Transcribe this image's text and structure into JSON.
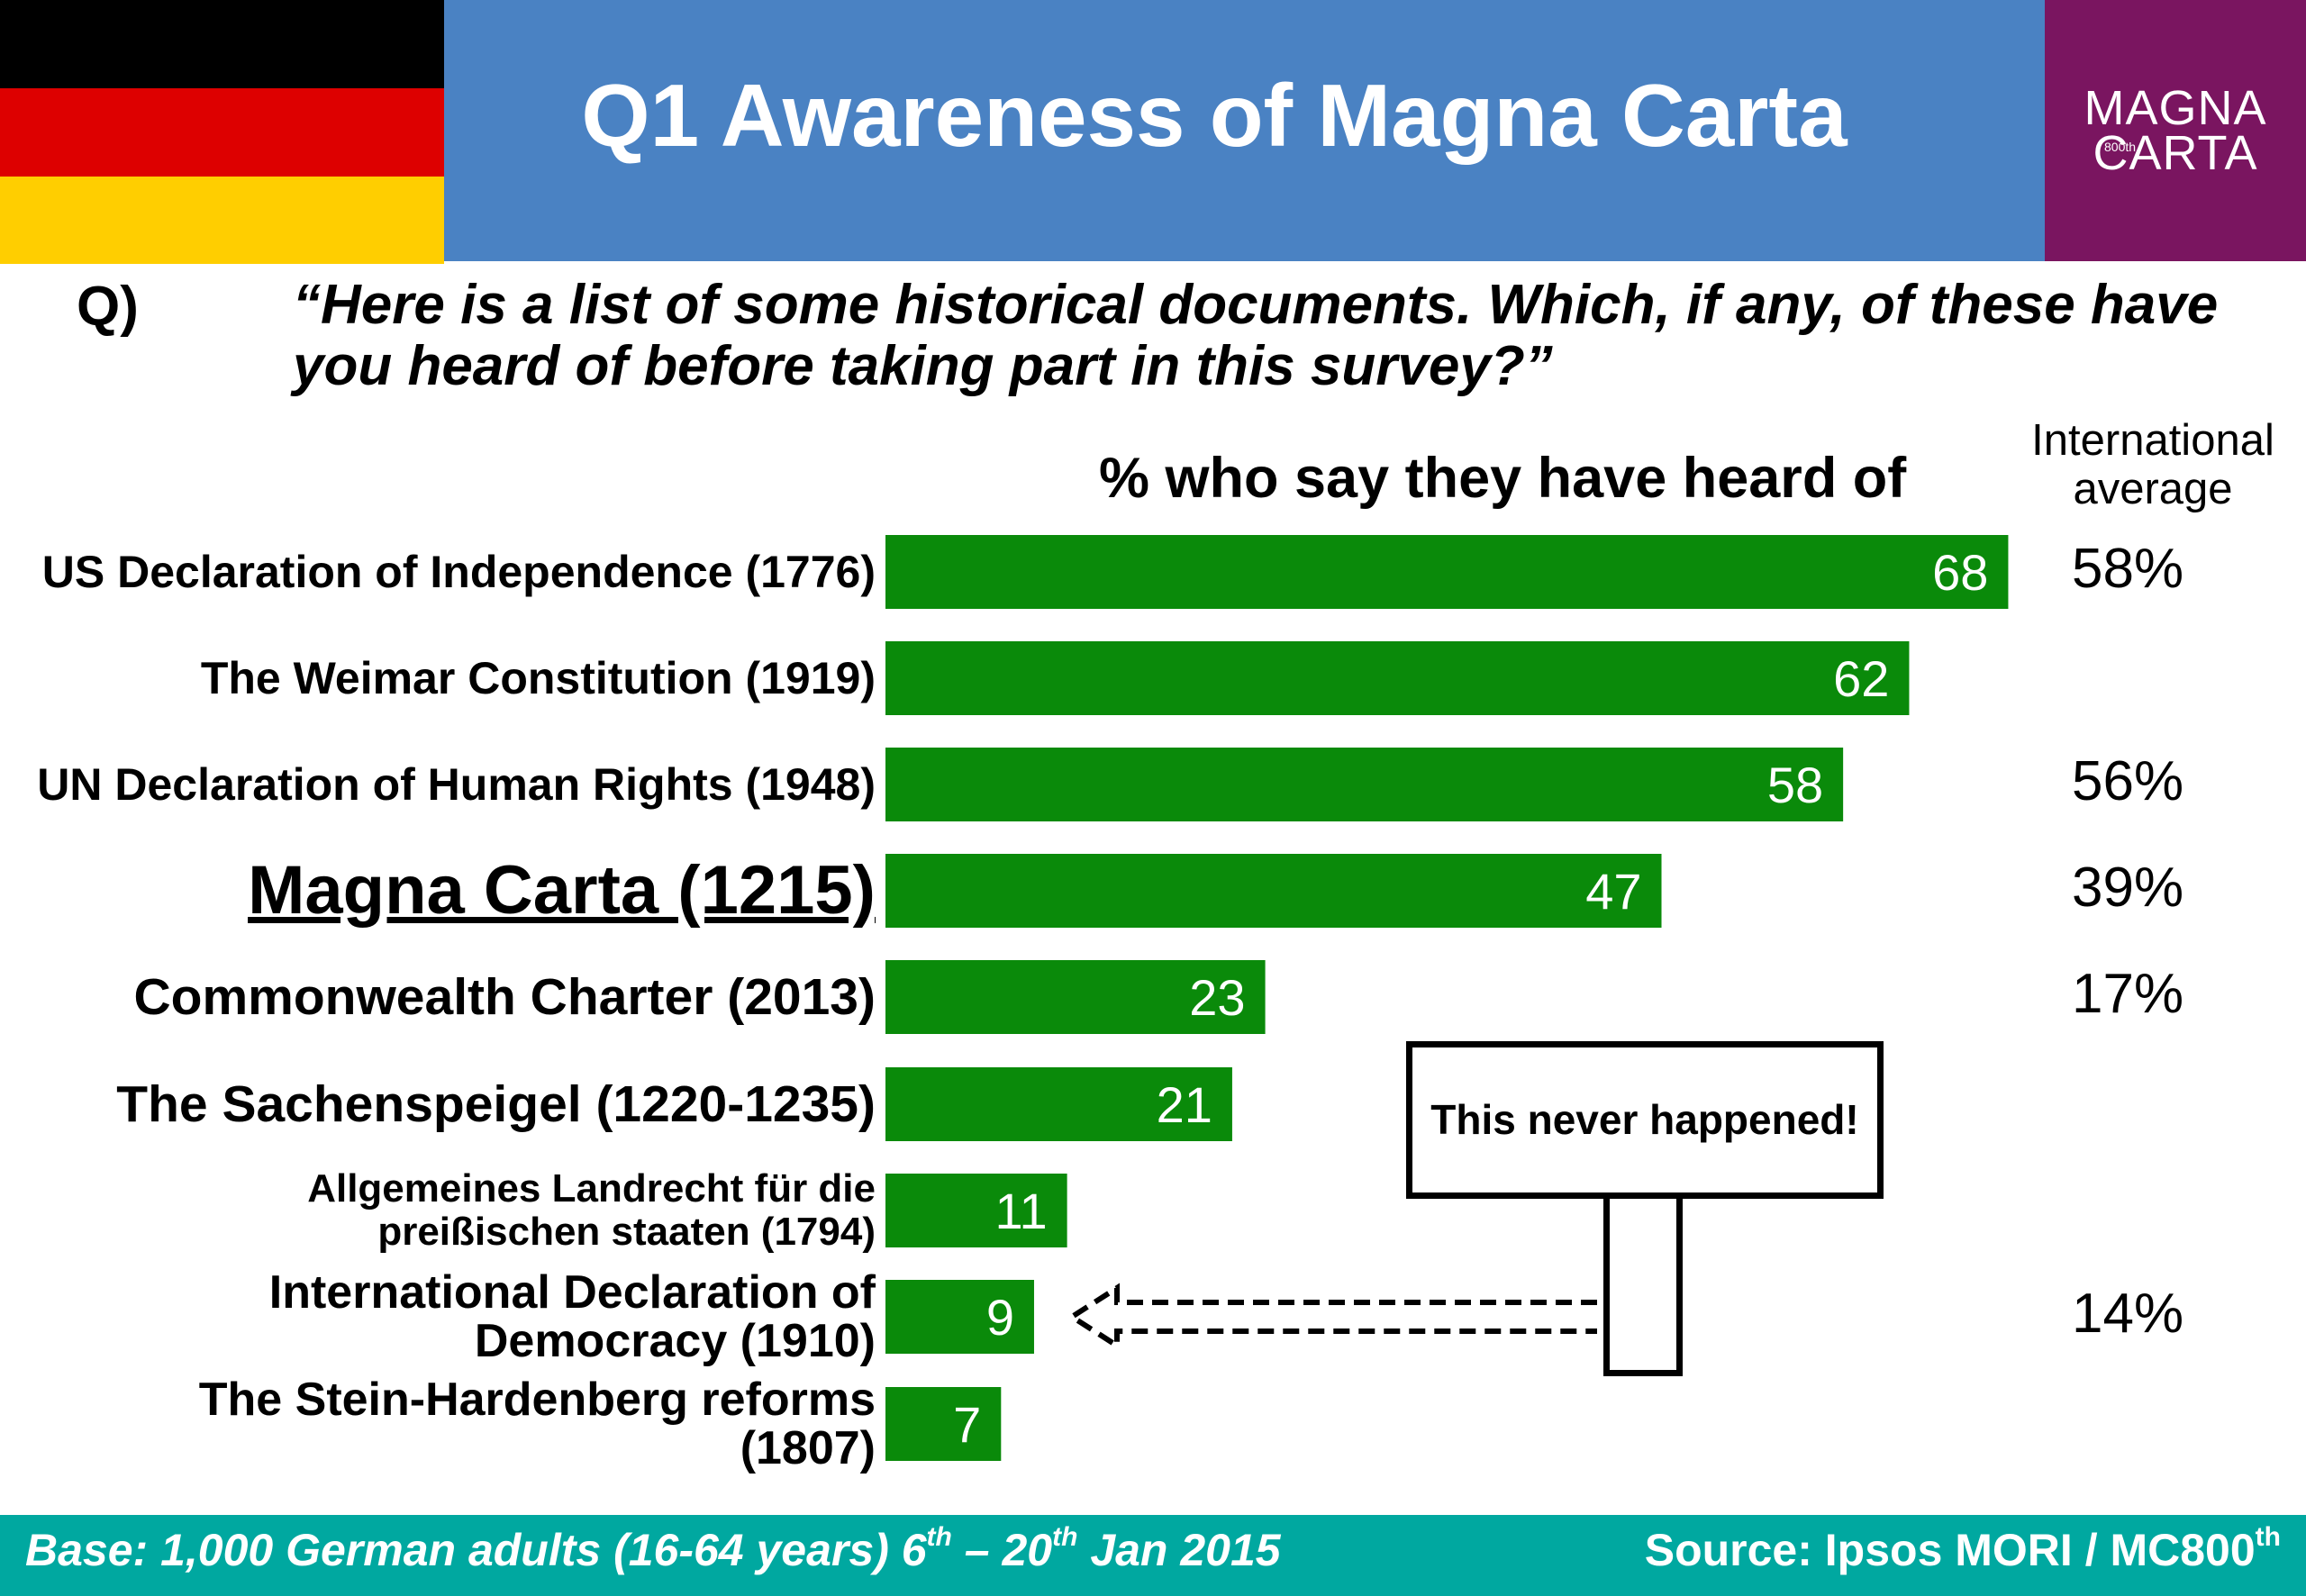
{
  "header": {
    "title": "Q1 Awareness of Magna Carta",
    "flag_colors": [
      "#000000",
      "#dd0000",
      "#ffce00"
    ],
    "logo": {
      "line1": "MAGNA",
      "line2": "CARTA",
      "badge": "800th"
    }
  },
  "question": {
    "label": "Q)",
    "text": "“Here is a list of some historical documents. Which, if any, of these have you heard of before taking part in this survey?”"
  },
  "chart_data": {
    "type": "bar",
    "orientation": "horizontal",
    "title": "% who say they have heard of",
    "bar_color": "#0a8a0a",
    "categories": [
      "US Declaration of Independence (1776)",
      "The Weimar Constitution (1919)",
      "UN Declaration of Human Rights (1948)",
      "Magna Carta (1215)",
      "Commonwealth Charter (2013)",
      "The Sachenspeigel (1220-1235)",
      "Allgemeines Landrecht für die preißischen staaten (1794)",
      "International Declaration of Democracy (1910)",
      "The Stein-Hardenberg reforms (1807)"
    ],
    "values": [
      68,
      62,
      58,
      47,
      23,
      21,
      11,
      9,
      7
    ],
    "international_average": {
      "header": "International average",
      "values": [
        "58%",
        "",
        "56%",
        "39%",
        "17%",
        "",
        "",
        "14%",
        ""
      ]
    },
    "annotation": "This never happened!"
  },
  "footer": {
    "base_prefix": "Base: 1,000 German adults (16-64 years) 6",
    "base_sup1": "th",
    "base_mid": " – 20",
    "base_sup2": "th",
    "base_suffix": " Jan 2015",
    "source_prefix": "Source: Ipsos MORI / MC800",
    "source_sup": "th"
  }
}
